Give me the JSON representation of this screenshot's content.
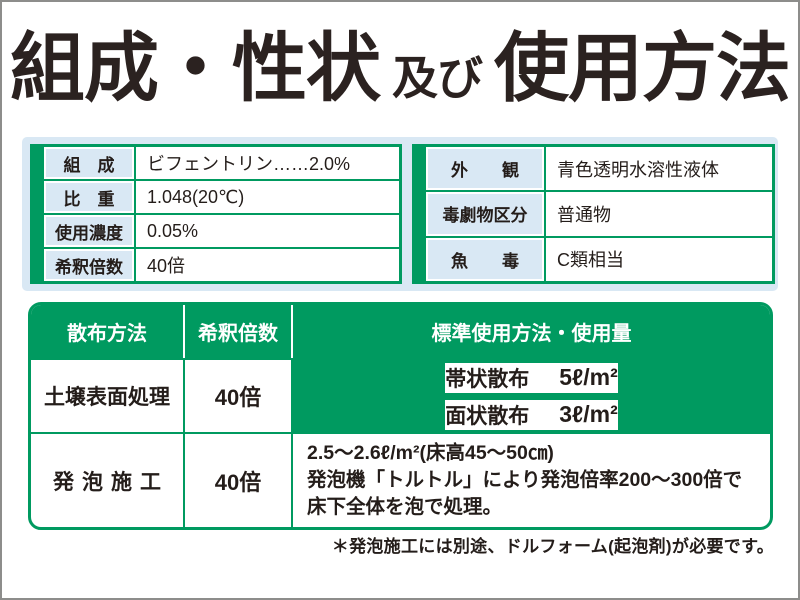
{
  "title": {
    "part1": "組成・性状",
    "part2": "及び",
    "part3": "使用方法"
  },
  "spec_tables": {
    "left": {
      "rows": [
        {
          "label": "組　成",
          "value": "ビフェントリン……2.0%"
        },
        {
          "label": "比　重",
          "value": "1.048(20℃)"
        },
        {
          "label": "使用濃度",
          "value": "0.05%"
        },
        {
          "label": "希釈倍数",
          "value": "40倍"
        }
      ]
    },
    "right": {
      "rows": [
        {
          "label": "外　　観",
          "value": "青色透明水溶性液体"
        },
        {
          "label": "毒劇物区分",
          "value": "普通物"
        },
        {
          "label": "魚　　毒",
          "value": "C類相当"
        }
      ]
    }
  },
  "usage_table": {
    "headers": [
      "散布方法",
      "希釈倍数",
      "標準使用方法・使用量"
    ],
    "rows": [
      {
        "method": "土壌表面処理",
        "dilution": "40倍",
        "sub_rows": [
          {
            "type": "帯状散布",
            "amount": "5ℓ/m²"
          },
          {
            "type": "面状散布",
            "amount": "3ℓ/m²"
          }
        ]
      },
      {
        "method": "発泡施工",
        "dilution": "40倍",
        "lines": [
          "2.5～2.6ℓ/m²(床高45～50㎝)",
          "発泡機「トルトル」により発泡倍率200～300倍で",
          "床下全体を泡で処理。"
        ]
      }
    ]
  },
  "footnote": "＊発泡施工には別途、ドルフォーム(起泡剤)が必要です。",
  "colors": {
    "green": "#009a60",
    "light_blue": "#d9e8f4",
    "text": "#241d1a",
    "border_gray": "#8d8d8b",
    "white": "#ffffff"
  }
}
